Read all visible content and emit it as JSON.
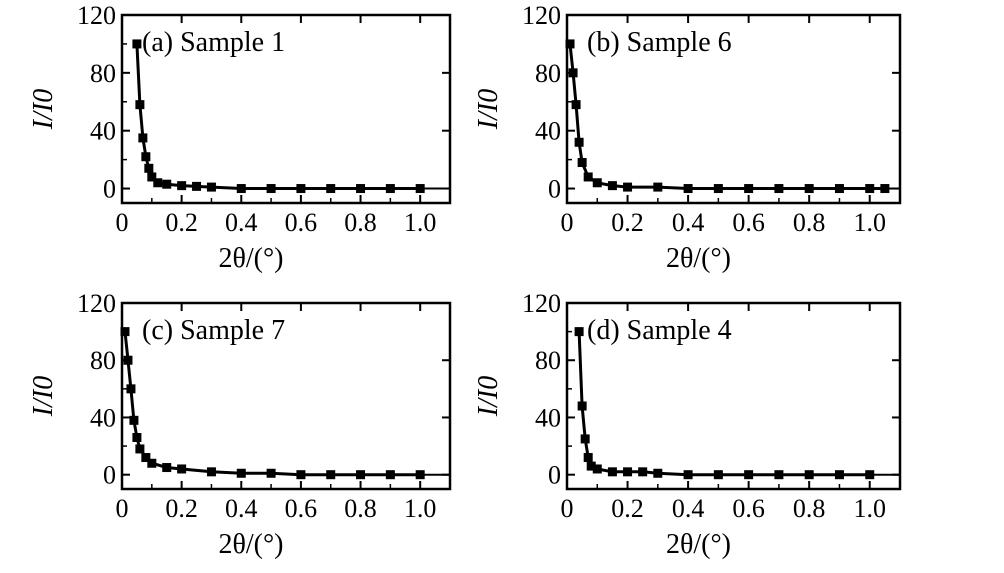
{
  "chart_data": [
    {
      "type": "scatter",
      "title": "(a)  Sample 1",
      "xlabel": "2θ/(°)",
      "ylabel": "I/I0",
      "xlim": [
        0,
        1.1
      ],
      "ylim": [
        -10,
        120
      ],
      "xticks": [
        "0",
        "0.2",
        "0.4",
        "0.6",
        "0.8",
        "1.0"
      ],
      "yticks": [
        "0",
        "40",
        "80",
        "120"
      ],
      "series": [
        {
          "x": [
            0.05,
            0.06,
            0.07,
            0.08,
            0.09,
            0.1,
            0.12,
            0.15,
            0.2,
            0.25,
            0.3,
            0.4,
            0.5,
            0.6,
            0.7,
            0.8,
            0.9,
            1.0
          ],
          "y": [
            100,
            58,
            35,
            22,
            14,
            8,
            4,
            3,
            2,
            1.5,
            1,
            0,
            0,
            0,
            0,
            0,
            0,
            0
          ]
        }
      ]
    },
    {
      "type": "scatter",
      "title": "(b)  Sample 6",
      "xlabel": "2θ/(°)",
      "ylabel": "I/I0",
      "xlim": [
        0,
        1.1
      ],
      "ylim": [
        -10,
        120
      ],
      "xticks": [
        "0",
        "0.2",
        "0.4",
        "0.6",
        "0.8",
        "1.0"
      ],
      "yticks": [
        "0",
        "40",
        "80",
        "120"
      ],
      "series": [
        {
          "x": [
            0.01,
            0.02,
            0.03,
            0.04,
            0.05,
            0.07,
            0.1,
            0.15,
            0.2,
            0.3,
            0.4,
            0.5,
            0.6,
            0.7,
            0.8,
            0.9,
            1.0,
            1.05
          ],
          "y": [
            100,
            80,
            58,
            32,
            18,
            8,
            4,
            2,
            1,
            1,
            0,
            0,
            0,
            0,
            0,
            0,
            0,
            0
          ]
        }
      ]
    },
    {
      "type": "scatter",
      "title": "(c)  Sample 7",
      "xlabel": "2θ/(°)",
      "ylabel": "I/I0",
      "xlim": [
        0,
        1.1
      ],
      "ylim": [
        -10,
        120
      ],
      "xticks": [
        "0",
        "0.2",
        "0.4",
        "0.6",
        "0.8",
        "1.0"
      ],
      "yticks": [
        "0",
        "40",
        "80",
        "120"
      ],
      "series": [
        {
          "x": [
            0.01,
            0.02,
            0.03,
            0.04,
            0.05,
            0.06,
            0.08,
            0.1,
            0.15,
            0.2,
            0.3,
            0.4,
            0.5,
            0.6,
            0.7,
            0.8,
            0.9,
            1.0
          ],
          "y": [
            100,
            80,
            60,
            38,
            26,
            18,
            12,
            8,
            5,
            4,
            2,
            1,
            1,
            0,
            0,
            0,
            0,
            0
          ]
        }
      ]
    },
    {
      "type": "scatter",
      "title": "(d)  Sample 4",
      "xlabel": "2θ/(°)",
      "ylabel": "I/I0",
      "xlim": [
        0,
        1.1
      ],
      "ylim": [
        -10,
        120
      ],
      "xticks": [
        "0",
        "0.2",
        "0.4",
        "0.6",
        "0.8",
        "1.0"
      ],
      "yticks": [
        "0",
        "40",
        "80",
        "120"
      ],
      "series": [
        {
          "x": [
            0.04,
            0.05,
            0.06,
            0.07,
            0.08,
            0.1,
            0.15,
            0.2,
            0.25,
            0.3,
            0.4,
            0.5,
            0.6,
            0.7,
            0.8,
            0.9,
            1.0
          ],
          "y": [
            100,
            48,
            25,
            12,
            6,
            4,
            2,
            2,
            2,
            1,
            0,
            0,
            0,
            0,
            0,
            0,
            0
          ]
        }
      ]
    }
  ]
}
